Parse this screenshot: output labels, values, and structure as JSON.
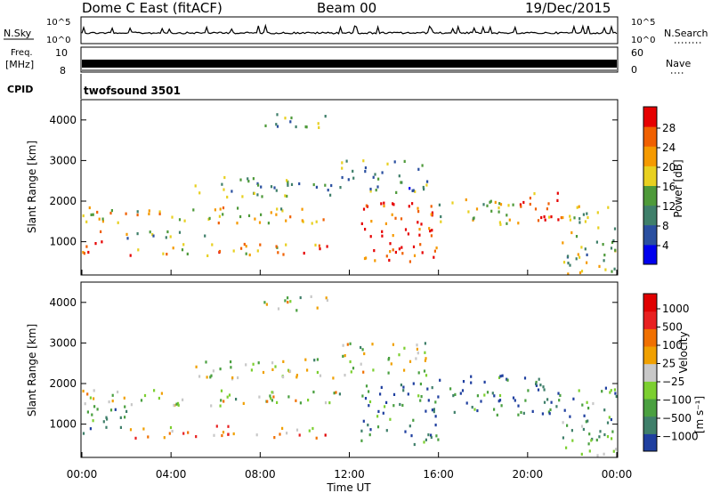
{
  "header": {
    "station": "Dome C East (fitACF)",
    "beam": "Beam 00",
    "date": "19/Dec/2015"
  },
  "chart_data": [
    {
      "type": "line",
      "panel": "noise",
      "left_label": "N.Sky",
      "right_label": "N.Search",
      "left_ticks": [
        "10^5",
        "10^0"
      ],
      "right_ticks": [
        "10^5",
        "10^0"
      ]
    },
    {
      "type": "line",
      "panel": "frequency",
      "left_label_1": "Freq.",
      "left_label_2": "[MHz]",
      "right_label": "Nave",
      "left_ticks": [
        "10",
        "8"
      ],
      "right_ticks": [
        "60",
        "0"
      ]
    },
    {
      "type": "text",
      "panel": "cpid",
      "label": "CPID",
      "value": "twofsound 3501"
    },
    {
      "type": "heatmap",
      "panel": "power",
      "ylabel": "Slant Range [km]",
      "yticks": [
        "1000",
        "2000",
        "3000",
        "4000"
      ],
      "ylim": [
        180,
        4500
      ],
      "colorbar_label": "Power [dB]",
      "colorbar_ticks": [
        "4",
        "8",
        "12",
        "16",
        "20",
        "24",
        "28"
      ],
      "colors": [
        "#0000ee",
        "#2a4fa0",
        "#3f7f6a",
        "#4e9a3a",
        "#e8d020",
        "#f59a00",
        "#f06000",
        "#e60000"
      ],
      "bands": [
        {
          "t0": 0.0,
          "t1": 11.7,
          "r0": 1450,
          "r1": 1850,
          "level": 0.6
        },
        {
          "t0": 0.0,
          "t1": 1.0,
          "r0": 700,
          "r1": 1300,
          "level": 0.95
        },
        {
          "t0": 1.0,
          "t1": 6.0,
          "r0": 1050,
          "r1": 1250,
          "level": 0.45
        },
        {
          "t0": 2.0,
          "t1": 11.0,
          "r0": 650,
          "r1": 950,
          "level": 0.7
        },
        {
          "t0": 5.0,
          "t1": 11.5,
          "r0": 2100,
          "r1": 2600,
          "level": 0.35
        },
        {
          "t0": 8.0,
          "t1": 11.0,
          "r0": 3800,
          "r1": 4200,
          "level": 0.4
        },
        {
          "t0": 12.5,
          "t1": 16.0,
          "r0": 500,
          "r1": 2000,
          "level": 0.9
        },
        {
          "t0": 11.5,
          "t1": 15.5,
          "r0": 2200,
          "r1": 3000,
          "level": 0.35
        },
        {
          "t0": 16.0,
          "t1": 19.5,
          "r0": 1400,
          "r1": 2100,
          "level": 0.5
        },
        {
          "t0": 19.5,
          "t1": 21.5,
          "r0": 1300,
          "r1": 2200,
          "level": 0.85
        },
        {
          "t0": 21.5,
          "t1": 24.0,
          "r0": 200,
          "r1": 1900,
          "level": 0.45
        }
      ]
    },
    {
      "type": "heatmap",
      "panel": "velocity",
      "ylabel": "Slant Range [km]",
      "yticks": [
        "1000",
        "2000",
        "3000",
        "4000"
      ],
      "ylim": [
        180,
        4500
      ],
      "colorbar_label": "Velocity",
      "colorbar_units": "[m s⁻¹]",
      "colorbar_ticks": [
        "1000",
        "500",
        "100",
        "25",
        "−25",
        "−100",
        "−500",
        "−1000"
      ],
      "colors": [
        "#1f3f9f",
        "#3f7f6a",
        "#4aa040",
        "#7ccf30",
        "#c8c8c8",
        "#f0a000",
        "#f07000",
        "#e82020",
        "#e00000"
      ],
      "bands": [
        {
          "t0": 0.0,
          "t1": 11.7,
          "r0": 1450,
          "r1": 1850,
          "level": 0.45
        },
        {
          "t0": 0.0,
          "t1": 2.0,
          "r0": 700,
          "r1": 1500,
          "level": 0.15
        },
        {
          "t0": 2.0,
          "t1": 11.0,
          "r0": 650,
          "r1": 950,
          "level": 0.65
        },
        {
          "t0": 5.0,
          "t1": 11.5,
          "r0": 2100,
          "r1": 2600,
          "level": 0.45
        },
        {
          "t0": 8.0,
          "t1": 11.0,
          "r0": 3800,
          "r1": 4200,
          "level": 0.45
        },
        {
          "t0": 12.5,
          "t1": 16.0,
          "r0": 500,
          "r1": 2000,
          "level": 0.15
        },
        {
          "t0": 11.5,
          "t1": 15.5,
          "r0": 2200,
          "r1": 3000,
          "level": 0.45
        },
        {
          "t0": 16.0,
          "t1": 21.5,
          "r0": 1200,
          "r1": 2200,
          "level": 0.1
        },
        {
          "t0": 21.5,
          "t1": 24.0,
          "r0": 200,
          "r1": 1900,
          "level": 0.25
        }
      ]
    }
  ],
  "xaxis": {
    "label": "Time UT",
    "ticks": [
      "00:00",
      "04:00",
      "08:00",
      "12:00",
      "16:00",
      "20:00",
      "00:00"
    ],
    "range_hours": [
      0,
      24
    ]
  }
}
